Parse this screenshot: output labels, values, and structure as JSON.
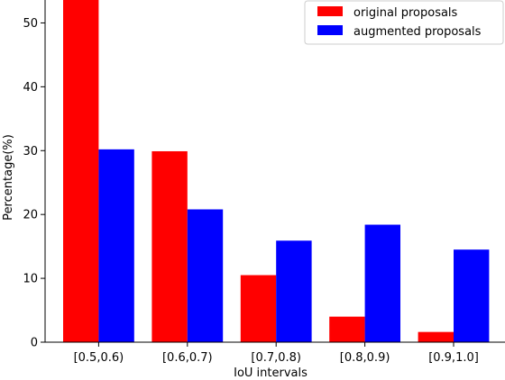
{
  "chart_data": {
    "type": "bar",
    "categories": [
      "[0.5,0.6)",
      "[0.6,0.7)",
      "[0.7,0.8)",
      "[0.8,0.9)",
      "[0.9,1.0]"
    ],
    "series": [
      {
        "name": "original proposals",
        "color": "#ff0000",
        "values": [
          53.8,
          29.9,
          10.5,
          4.0,
          1.6
        ]
      },
      {
        "name": "augmented proposals",
        "color": "#0000ff",
        "values": [
          30.2,
          20.8,
          15.9,
          18.4,
          14.5
        ]
      }
    ],
    "xlabel": "IoU intervals",
    "ylabel": "Percentage(%)",
    "ylim": [
      0,
      55
    ],
    "yticks": [
      0,
      10,
      20,
      30,
      40,
      50
    ],
    "grid": false,
    "legend": "top-right"
  }
}
